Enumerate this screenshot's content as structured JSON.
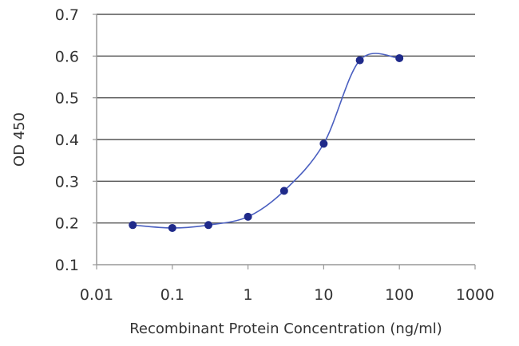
{
  "chart_data": {
    "type": "line",
    "xlabel": "Recombinant Protein Concentration (ng/ml)",
    "ylabel": "OD 450",
    "x_scale": "log",
    "xlim": [
      0.01,
      1000
    ],
    "ylim": [
      0.1,
      0.7
    ],
    "x_ticks": [
      "0.01",
      "0.1",
      "1",
      "10",
      "100",
      "1000"
    ],
    "y_ticks": [
      "0.1",
      "0.2",
      "0.3",
      "0.4",
      "0.5",
      "0.6",
      "0.7"
    ],
    "grid": "horizontal",
    "legend": "none",
    "series": [
      {
        "color": "#1f2a8a",
        "x": [
          0.03,
          0.1,
          0.3,
          1,
          3,
          10,
          30,
          100
        ],
        "y": [
          0.195,
          0.188,
          0.195,
          0.215,
          0.277,
          0.39,
          0.59,
          0.595
        ]
      }
    ],
    "line_color": "#4a5fc0",
    "marker_color": "#1f2a8a"
  }
}
